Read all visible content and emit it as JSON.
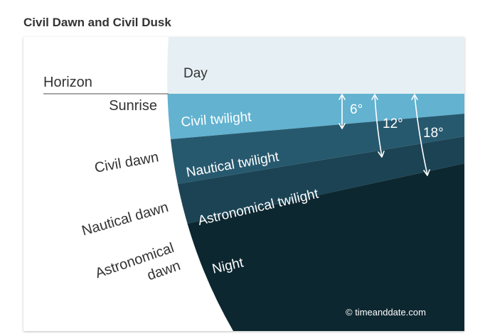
{
  "title": "Civil Dawn and Civil Dusk",
  "diagram": {
    "left_labels": {
      "horizon": "Horizon",
      "sunrise": "Sunrise",
      "civil_dawn": "Civil dawn",
      "nautical_dawn": "Nautical dawn",
      "astronomical_dawn_line1": "Astronomical",
      "astronomical_dawn_line2": "dawn"
    },
    "bands": {
      "day": "Day",
      "civil_twilight": "Civil twilight",
      "nautical_twilight": "Nautical twilight",
      "astronomical_twilight": "Astronomical twilight",
      "night": "Night"
    },
    "angles": {
      "civil": "6°",
      "nautical": "12°",
      "astronomical": "18°"
    },
    "credit": "© timeanddate.com",
    "colors": {
      "day": "#e6f0f4",
      "civil_twilight": "#62b2d0",
      "nautical_twilight": "#27596e",
      "astronomical_twilight": "#1b4354",
      "night": "#0d2730",
      "horizon_line": "#888888",
      "label_text": "#333333",
      "band_text": "#ffffff"
    }
  }
}
